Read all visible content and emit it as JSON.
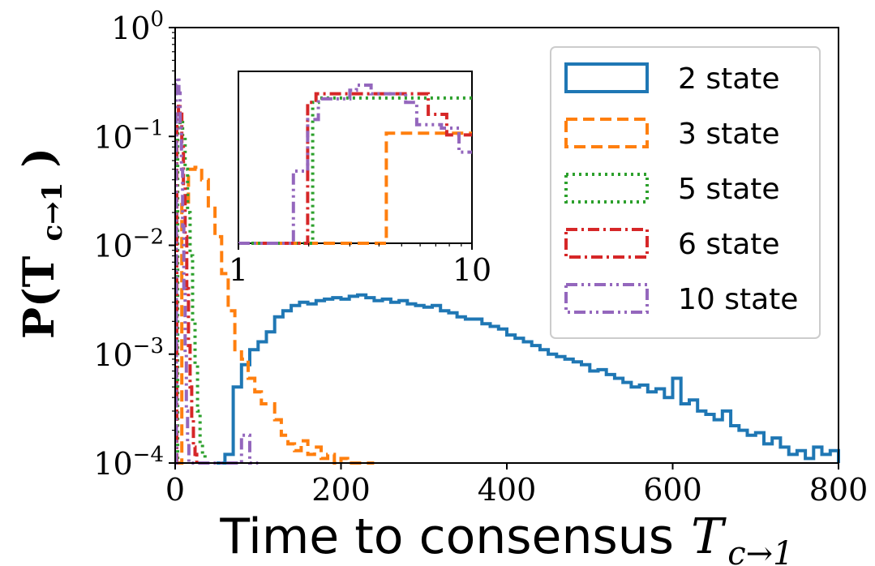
{
  "chart_data": {
    "type": "line",
    "xlabel_text": "Time to consensus",
    "xlabel_math": "T",
    "xlabel_sub": "c→1",
    "ylabel": "P(T",
    "ylabel_sub": "c→1",
    "ylabel_close": ")",
    "xlim": [
      0,
      800
    ],
    "ylim": [
      0.0001,
      1
    ],
    "yscale": "log",
    "x_ticks": [
      "0",
      "200",
      "400",
      "600",
      "800"
    ],
    "y_ticks": [
      {
        "base": "10",
        "exp": "0"
      },
      {
        "base": "10",
        "exp": "−1"
      },
      {
        "base": "10",
        "exp": "−2"
      },
      {
        "base": "10",
        "exp": "−3"
      },
      {
        "base": "10",
        "exp": "−4"
      }
    ],
    "legend_position": "top-right",
    "series": [
      {
        "name": "2 state",
        "color": "#1f77b4",
        "style": "solid",
        "bin_edges": [
          50,
          60,
          70,
          80,
          90,
          100,
          110,
          120,
          130,
          140,
          150,
          160,
          170,
          180,
          190,
          200,
          210,
          220,
          230,
          240,
          250,
          260,
          270,
          280,
          290,
          300,
          310,
          320,
          330,
          340,
          350,
          360,
          370,
          380,
          390,
          400,
          410,
          420,
          430,
          440,
          450,
          460,
          470,
          480,
          490,
          500,
          510,
          520,
          530,
          540,
          550,
          560,
          570,
          580,
          590,
          600,
          610,
          620,
          630,
          640,
          650,
          660,
          670,
          680,
          690,
          700,
          710,
          720,
          730,
          740,
          750,
          760,
          770,
          780,
          790,
          800
        ],
        "values": [
          0.0001,
          0.00012,
          0.0005,
          0.0008,
          0.0011,
          0.0013,
          0.0016,
          0.0022,
          0.0025,
          0.0028,
          0.003,
          0.0029,
          0.0031,
          0.0032,
          0.0033,
          0.0032,
          0.0034,
          0.0035,
          0.0033,
          0.0031,
          0.0032,
          0.003,
          0.0031,
          0.0029,
          0.0028,
          0.0027,
          0.0028,
          0.0025,
          0.0024,
          0.0022,
          0.0021,
          0.0021,
          0.0019,
          0.0018,
          0.0017,
          0.0015,
          0.0014,
          0.0013,
          0.0012,
          0.0011,
          0.001,
          0.00095,
          0.0009,
          0.00085,
          0.0008,
          0.0007,
          0.00072,
          0.00065,
          0.0006,
          0.00055,
          0.0005,
          0.00052,
          0.00045,
          0.00048,
          0.0004,
          0.0006,
          0.00035,
          0.00038,
          0.0003,
          0.00028,
          0.00025,
          0.0003,
          0.00022,
          0.0002,
          0.00018,
          0.00019,
          0.00015,
          0.00017,
          0.00014,
          0.00012,
          0.00013,
          0.00011,
          0.00014,
          0.00012,
          0.00013
        ]
      },
      {
        "name": "3 state",
        "color": "#ff7f0e",
        "style": "dashed",
        "bin_edges": [
          0,
          8,
          16,
          24,
          32,
          40,
          48,
          56,
          64,
          72,
          80,
          88,
          96,
          104,
          112,
          120,
          128,
          136,
          144,
          152,
          160,
          168,
          176,
          184,
          192,
          200,
          208,
          216,
          224,
          232,
          240
        ],
        "values": [
          0.0001,
          0.025,
          0.05,
          0.052,
          0.04,
          0.023,
          0.012,
          0.0055,
          0.0025,
          0.0011,
          0.0009,
          0.0006,
          0.00045,
          0.00035,
          0.00035,
          0.00025,
          0.00018,
          0.00015,
          0.00013,
          0.00016,
          0.00012,
          0.00014,
          0.00011,
          0.00012,
          0.0001,
          0.00011,
          0.0001,
          0.0001,
          0.0001,
          0.0001
        ]
      },
      {
        "name": "5 state",
        "color": "#2ca02c",
        "style": "dotted",
        "bin_edges": [
          0,
          3,
          6,
          9,
          12,
          15,
          18,
          21,
          24,
          27,
          30,
          33,
          36,
          39
        ],
        "values": [
          0.0001,
          0.12,
          0.14,
          0.1,
          0.05,
          0.02,
          0.008,
          0.002,
          0.0008,
          0.0003,
          0.00015,
          0.00012,
          0.0001
        ]
      },
      {
        "name": "6 state",
        "color": "#d62728",
        "style": "dashdot",
        "bin_edges": [
          0,
          2,
          4,
          6,
          8,
          10,
          12,
          14,
          16,
          18,
          20,
          22,
          24,
          26,
          28,
          30
        ],
        "values": [
          0.0001,
          0.15,
          0.2,
          0.16,
          0.08,
          0.035,
          0.012,
          0.004,
          0.0012,
          0.0005,
          0.00025,
          0.00014,
          0.00012,
          0.0001,
          0.0001
        ]
      },
      {
        "name": "10 state",
        "color": "#9467bd",
        "style": "dashdotdot",
        "bin_edges": [
          0,
          1.5,
          3,
          4.5,
          6,
          7.5,
          9,
          10.5,
          12,
          13.5,
          15,
          16.5,
          18,
          80,
          90,
          100
        ],
        "values": [
          0.0001,
          0.3,
          0.35,
          0.25,
          0.12,
          0.05,
          0.015,
          0.004,
          0.001,
          0.0003,
          0.00015,
          0.0001,
          0.0001,
          0.00018,
          0.0001
        ]
      }
    ],
    "inset": {
      "xscale": "log",
      "xlim": [
        1,
        10
      ],
      "x_ticks": [
        "1",
        "10"
      ],
      "series": [
        {
          "name": "3 state",
          "edges": [
            1.0,
            4.3,
            10.0
          ],
          "levels": [
            0.0,
            0.64
          ]
        },
        {
          "name": "5 state",
          "edges": [
            1.0,
            2.08,
            2.2,
            10.0
          ],
          "levels": [
            0.0,
            0.82,
            0.845
          ]
        },
        {
          "name": "6 state",
          "edges": [
            1.0,
            1.98,
            2.15,
            6.2,
            6.5,
            7.8,
            10.0
          ],
          "levels": [
            0.0,
            0.82,
            0.87,
            0.87,
            0.75,
            0.63
          ]
        },
        {
          "name": "10 state",
          "edges": [
            1.0,
            1.72,
            1.98,
            2.2,
            3.0,
            3.2,
            3.7,
            5.2,
            5.8,
            7.4,
            8.8,
            10.0
          ],
          "levels": [
            0.0,
            0.42,
            0.72,
            0.84,
            0.89,
            0.92,
            0.87,
            0.82,
            0.69,
            0.67,
            0.53
          ]
        }
      ]
    }
  }
}
